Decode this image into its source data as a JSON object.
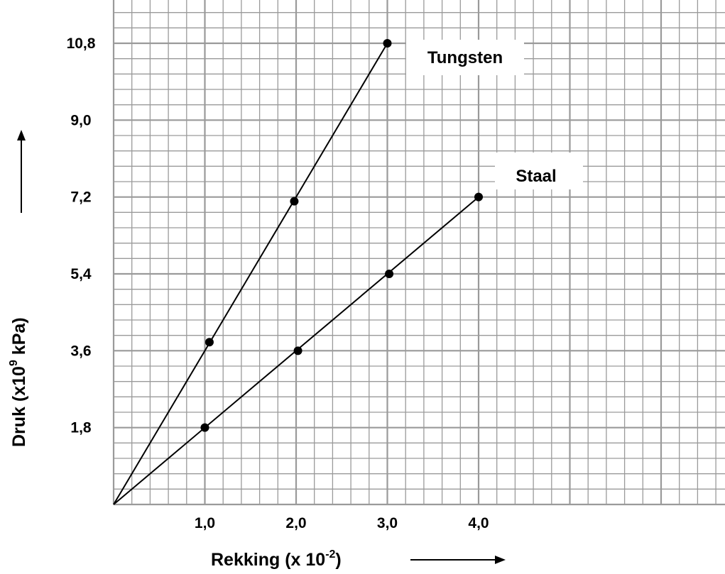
{
  "chart_data": {
    "type": "line",
    "xlabel": "Rekking (x 10",
    "xlabel_sup": "-2",
    "xlabel_end": ")",
    "ylabel": "Druk (x10",
    "ylabel_sup": "9",
    "ylabel_end": " kPa)",
    "x_ticks": [
      "1,0",
      "2,0",
      "3,0",
      "4,0"
    ],
    "y_ticks": [
      "1,8",
      "3,6",
      "5,4",
      "7,2",
      "9,0",
      "10,8"
    ],
    "xlim": [
      0,
      6.6
    ],
    "ylim": [
      0,
      11.4
    ],
    "grid": true,
    "series": [
      {
        "name": "Tungsten",
        "x": [
          1.05,
          1.98,
          3.0
        ],
        "y": [
          3.8,
          7.1,
          10.8
        ],
        "line": {
          "x": [
            0,
            3.0
          ],
          "y": [
            0,
            10.8
          ]
        }
      },
      {
        "name": "Staal",
        "x": [
          1.0,
          2.02,
          3.02,
          4.0
        ],
        "y": [
          1.8,
          3.6,
          5.4,
          7.2
        ],
        "line": {
          "x": [
            0,
            4.0
          ],
          "y": [
            0,
            7.2
          ]
        }
      }
    ],
    "colors": {
      "grid": "#9a9a9a",
      "line": "#000000"
    }
  }
}
